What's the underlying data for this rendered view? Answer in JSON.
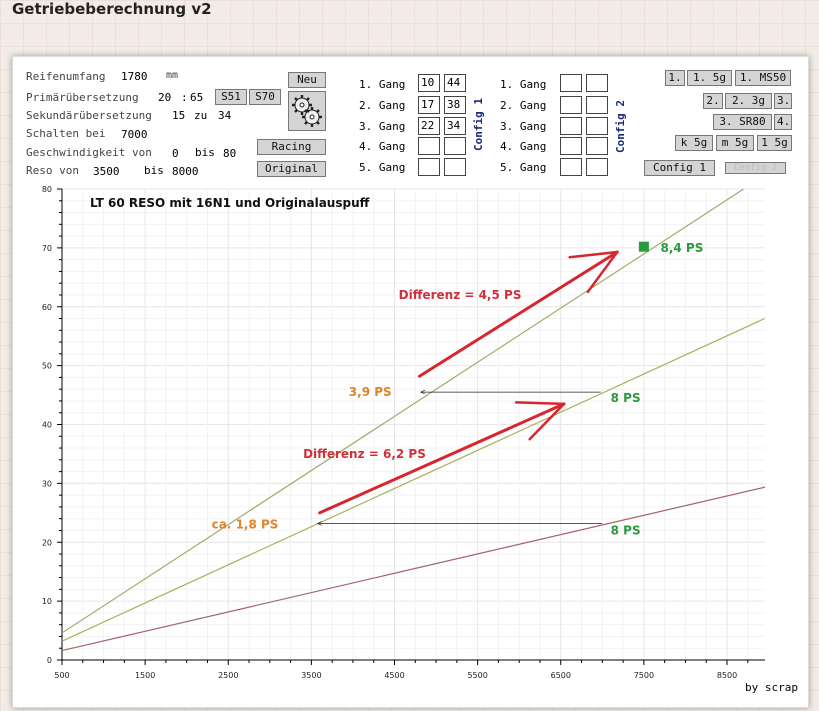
{
  "app": {
    "title": "Getriebeberechnung v2"
  },
  "form": {
    "reifenumfang": {
      "label": "Reifenumfang",
      "value": "1780",
      "unit": "mm"
    },
    "primaer": {
      "label": "Primärübersetzung",
      "a": "20",
      "sep": ":",
      "b": "65"
    },
    "sekundaer": {
      "label": "Sekundärübersetzung",
      "a": "15",
      "sep": "zu",
      "b": "34"
    },
    "schalten": {
      "label": "Schalten bei",
      "value": "7000"
    },
    "geschwindigkeit": {
      "label": "Geschwindigkeit von",
      "from": "0",
      "sep": "bis",
      "to": "80"
    },
    "reso": {
      "label": "Reso von",
      "from": "3500",
      "sep": "bis",
      "to": "8000"
    }
  },
  "buttons": {
    "s51": "S51",
    "s70": "S70",
    "neu": "Neu",
    "racing": "Racing",
    "original": "Original",
    "p1": "1.",
    "p1_5g": "1. 5g",
    "p1_ms50": "1. MS50",
    "p2": "2.",
    "p2_3g": "2. 3g",
    "p3": "3.",
    "p3_sr80": "3. SR80",
    "p4": "4.",
    "k5g": "k 5g",
    "m5g": "m 5g",
    "l5g": "1 5g",
    "config1": "Config 1",
    "config2": "Config 2"
  },
  "config1": {
    "label": "Config 1",
    "gears": [
      {
        "label": "1. Gang",
        "a": "10",
        "b": "44"
      },
      {
        "label": "2. Gang",
        "a": "17",
        "b": "38"
      },
      {
        "label": "3. Gang",
        "a": "22",
        "b": "34"
      },
      {
        "label": "4. Gang",
        "a": "",
        "b": ""
      },
      {
        "label": "5. Gang",
        "a": "",
        "b": ""
      }
    ]
  },
  "config2": {
    "label": "Config 2",
    "gears": [
      {
        "label": "1. Gang",
        "a": "",
        "b": ""
      },
      {
        "label": "2. Gang",
        "a": "",
        "b": ""
      },
      {
        "label": "3. Gang",
        "a": "",
        "b": ""
      },
      {
        "label": "4. Gang",
        "a": "",
        "b": ""
      },
      {
        "label": "5. Gang",
        "a": "",
        "b": ""
      }
    ]
  },
  "chart_data": {
    "type": "line",
    "title": "LT 60 RESO mit 16N1 und Originalauspuff",
    "xlim": [
      500,
      9000
    ],
    "ylim": [
      0,
      80
    ],
    "x_ticks": [
      500,
      1500,
      2500,
      3500,
      4500,
      5500,
      6500,
      7500,
      8500
    ],
    "y_ticks": [
      0,
      10,
      20,
      30,
      40,
      50,
      60,
      70,
      80
    ],
    "grid": true,
    "series": [
      {
        "color": "#9aad68",
        "x": [
          500,
          8700
        ],
        "y": [
          4.6,
          80
        ]
      },
      {
        "color": "#a6b25c",
        "x": [
          500,
          9000
        ],
        "y": [
          3.2,
          58.3
        ]
      },
      {
        "color": "#a5606a",
        "x": [
          500,
          9000
        ],
        "y": [
          1.6,
          29.5
        ]
      }
    ],
    "annotations": [
      {
        "text": "8,4 PS",
        "color": "#2a9a3c",
        "x": 7700,
        "y": 70
      },
      {
        "text": "Differenz = 4,5 PS",
        "color": "#d0303a",
        "x": 4550,
        "y": 62
      },
      {
        "text": "3,9 PS",
        "color": "#e0852a",
        "x": 3950,
        "y": 45.5
      },
      {
        "text": "8 PS",
        "color": "#2a9a3c",
        "x": 7100,
        "y": 44.5
      },
      {
        "text": "Differenz = 6,2 PS",
        "color": "#d0303a",
        "x": 3400,
        "y": 35
      },
      {
        "text": "ca. 1,8 PS",
        "color": "#e0852a",
        "x": 2300,
        "y": 23
      },
      {
        "text": "8 PS",
        "color": "#2a9a3c",
        "x": 7100,
        "y": 22
      }
    ],
    "marker": {
      "x": 7500,
      "y": 70.2,
      "color": "#2a9a3c"
    },
    "black_arrows": [
      {
        "from": [
          6980,
          45.5
        ],
        "to": [
          4820,
          45.5
        ]
      },
      {
        "from": [
          7000,
          23.2
        ],
        "to": [
          3580,
          23.2
        ]
      }
    ],
    "red_arrows": [
      {
        "from": [
          4800,
          48.2
        ],
        "to": [
          7180,
          69.3
        ]
      },
      {
        "from": [
          3600,
          25
        ],
        "to": [
          6540,
          43.5
        ]
      }
    ]
  },
  "footer": {
    "credit": "by scrap"
  }
}
